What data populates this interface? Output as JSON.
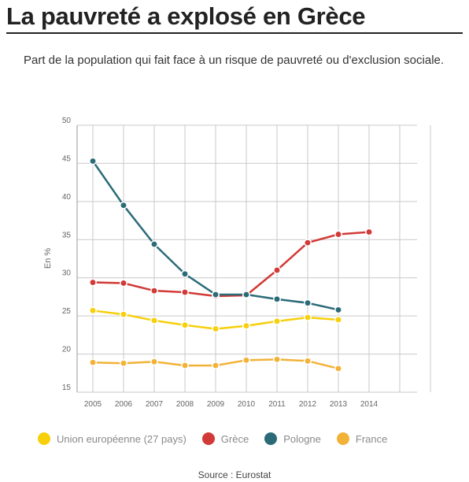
{
  "title": "La pauvreté a explosé en Grèce",
  "subtitle": "Part de la population qui fait face à un risque de pauvreté ou d'exclusion sociale.",
  "source": "Source : Eurostat",
  "chart_data": {
    "type": "line",
    "ylabel": "En %",
    "xlabel": "",
    "ylim": [
      15,
      50
    ],
    "y_ticks": [
      15,
      20,
      25,
      30,
      35,
      40,
      45,
      50
    ],
    "categories": [
      "2005",
      "2006",
      "2007",
      "2008",
      "2009",
      "2010",
      "2011",
      "2012",
      "2013",
      "2014"
    ],
    "grid": true,
    "legend_position": "bottom",
    "series": [
      {
        "name": "Union européenne (27 pays)",
        "color": "#f7cf0a",
        "values": [
          25.7,
          25.2,
          24.4,
          23.8,
          23.3,
          23.7,
          24.3,
          24.8,
          24.5,
          null
        ]
      },
      {
        "name": "Grèce",
        "color": "#d13a36",
        "values": [
          29.4,
          29.3,
          28.3,
          28.1,
          27.6,
          27.7,
          31.0,
          34.6,
          35.7,
          36.0
        ]
      },
      {
        "name": "Pologne",
        "color": "#2b6b78",
        "values": [
          45.3,
          39.5,
          34.4,
          30.5,
          27.8,
          27.8,
          27.2,
          26.7,
          25.8,
          null
        ]
      },
      {
        "name": "France",
        "color": "#f2b237",
        "values": [
          18.9,
          18.8,
          19.0,
          18.5,
          18.5,
          19.2,
          19.3,
          19.1,
          18.1,
          null
        ]
      }
    ]
  }
}
